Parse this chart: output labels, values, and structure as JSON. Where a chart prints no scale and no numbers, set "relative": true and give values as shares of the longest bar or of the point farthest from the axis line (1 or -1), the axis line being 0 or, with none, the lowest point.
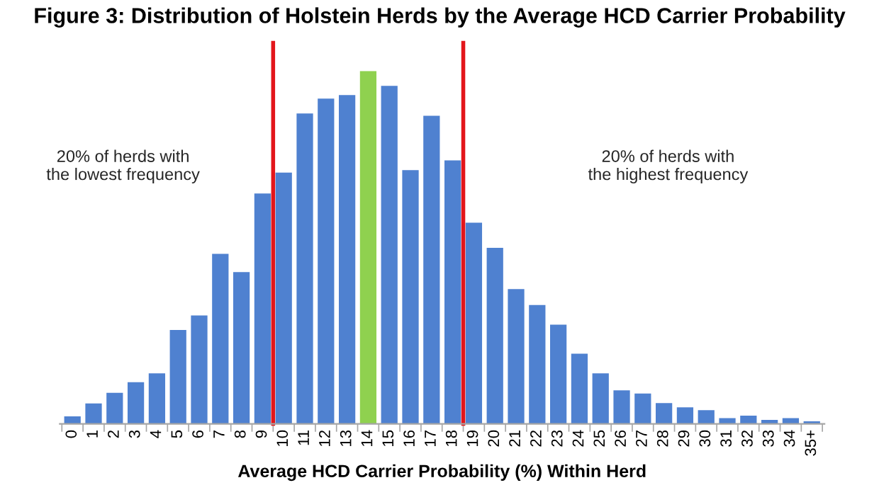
{
  "chart_data": {
    "type": "bar",
    "title": "Figure 3: Distribution of Holstein Herds by the Average HCD Carrier Probability",
    "xlabel": "Average HCD Carrier Probability (%) Within Herd",
    "categories": [
      "0",
      "1",
      "2",
      "3",
      "4",
      "5",
      "6",
      "7",
      "8",
      "9",
      "10",
      "11",
      "12",
      "13",
      "14",
      "15",
      "16",
      "17",
      "18",
      "19",
      "20",
      "21",
      "22",
      "23",
      "24",
      "25",
      "26",
      "27",
      "28",
      "29",
      "30",
      "31",
      "32",
      "33",
      "34",
      "35+"
    ],
    "values": [
      0.021,
      0.058,
      0.088,
      0.118,
      0.143,
      0.266,
      0.307,
      0.482,
      0.43,
      0.653,
      0.712,
      0.88,
      0.922,
      0.932,
      1.0,
      0.958,
      0.719,
      0.873,
      0.747,
      0.57,
      0.499,
      0.382,
      0.337,
      0.281,
      0.199,
      0.143,
      0.095,
      0.086,
      0.059,
      0.047,
      0.039,
      0.016,
      0.023,
      0.011,
      0.016,
      0.007
    ],
    "colors": [
      "#4f81d0",
      "#4f81d0",
      "#4f81d0",
      "#4f81d0",
      "#4f81d0",
      "#4f81d0",
      "#4f81d0",
      "#4f81d0",
      "#4f81d0",
      "#4f81d0",
      "#4f81d0",
      "#4f81d0",
      "#4f81d0",
      "#4f81d0",
      "#8fd14f",
      "#4f81d0",
      "#4f81d0",
      "#4f81d0",
      "#4f81d0",
      "#4f81d0",
      "#4f81d0",
      "#4f81d0",
      "#4f81d0",
      "#4f81d0",
      "#4f81d0",
      "#4f81d0",
      "#4f81d0",
      "#4f81d0",
      "#4f81d0",
      "#4f81d0",
      "#4f81d0",
      "#4f81d0",
      "#4f81d0",
      "#4f81d0",
      "#4f81d0",
      "#4f81d0"
    ],
    "relative": true,
    "annotations": [
      "20% of herds with\nthe lowest frequency",
      "20% of herds with\nthe highest frequency"
    ],
    "grid": false
  }
}
